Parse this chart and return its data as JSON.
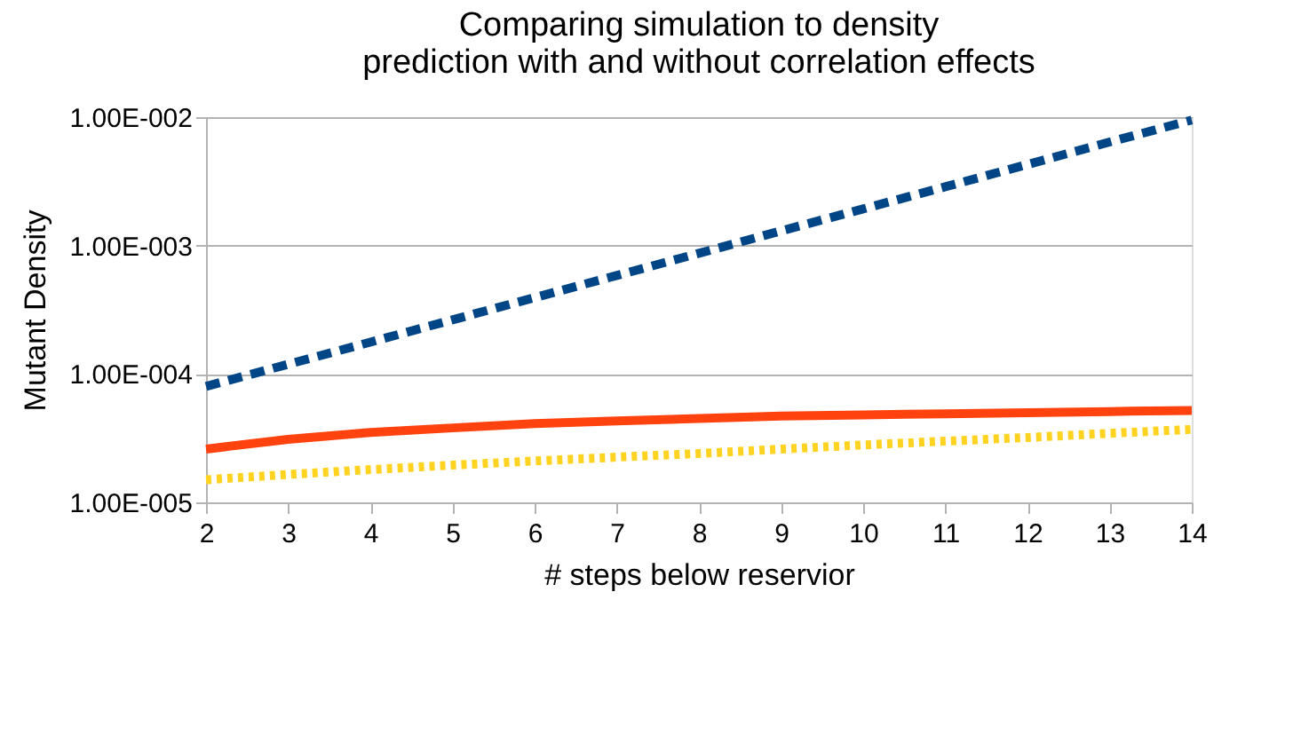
{
  "chart_data": {
    "type": "line",
    "title": "Comparing simulation to density\nprediction with and without correlation effects",
    "xlabel": "# steps below reservior",
    "ylabel": "Mutant Density",
    "x": [
      2,
      3,
      4,
      5,
      6,
      7,
      8,
      9,
      10,
      11,
      12,
      13,
      14
    ],
    "series": [
      {
        "color": "#004586",
        "line_style": "dashed",
        "values": [
          8e-05,
          0.000119,
          0.000177,
          0.000264,
          0.000393,
          0.000585,
          0.00087,
          0.0013,
          0.00193,
          0.00287,
          0.00428,
          0.0064,
          0.0095
        ]
      },
      {
        "color": "#ff420e",
        "line_style": "solid",
        "values": [
          2.6e-05,
          3.1e-05,
          3.5e-05,
          3.8e-05,
          4.1e-05,
          4.3e-05,
          4.5e-05,
          4.7e-05,
          4.8e-05,
          4.9e-05,
          5e-05,
          5.1e-05,
          5.2e-05
        ]
      },
      {
        "color": "#ffd320",
        "line_style": "dotted",
        "values": [
          1.5e-05,
          1.65e-05,
          1.8e-05,
          1.95e-05,
          2.1e-05,
          2.25e-05,
          2.4e-05,
          2.6e-05,
          2.8e-05,
          3e-05,
          3.2e-05,
          3.45e-05,
          3.7e-05
        ]
      }
    ],
    "xlim": [
      2,
      14
    ],
    "xticks": [
      2,
      3,
      4,
      5,
      6,
      7,
      8,
      9,
      10,
      11,
      12,
      13,
      14
    ],
    "ylim": [
      1e-05,
      0.01
    ],
    "yticks": [
      {
        "value": 1e-05,
        "label": "1.00E-005"
      },
      {
        "value": 0.0001,
        "label": "1.00E-004"
      },
      {
        "value": 0.001,
        "label": "1.00E-003"
      },
      {
        "value": 0.01,
        "label": "1.00E-002"
      }
    ],
    "log": "y",
    "grid": "y",
    "legend": false,
    "marker": "none"
  }
}
